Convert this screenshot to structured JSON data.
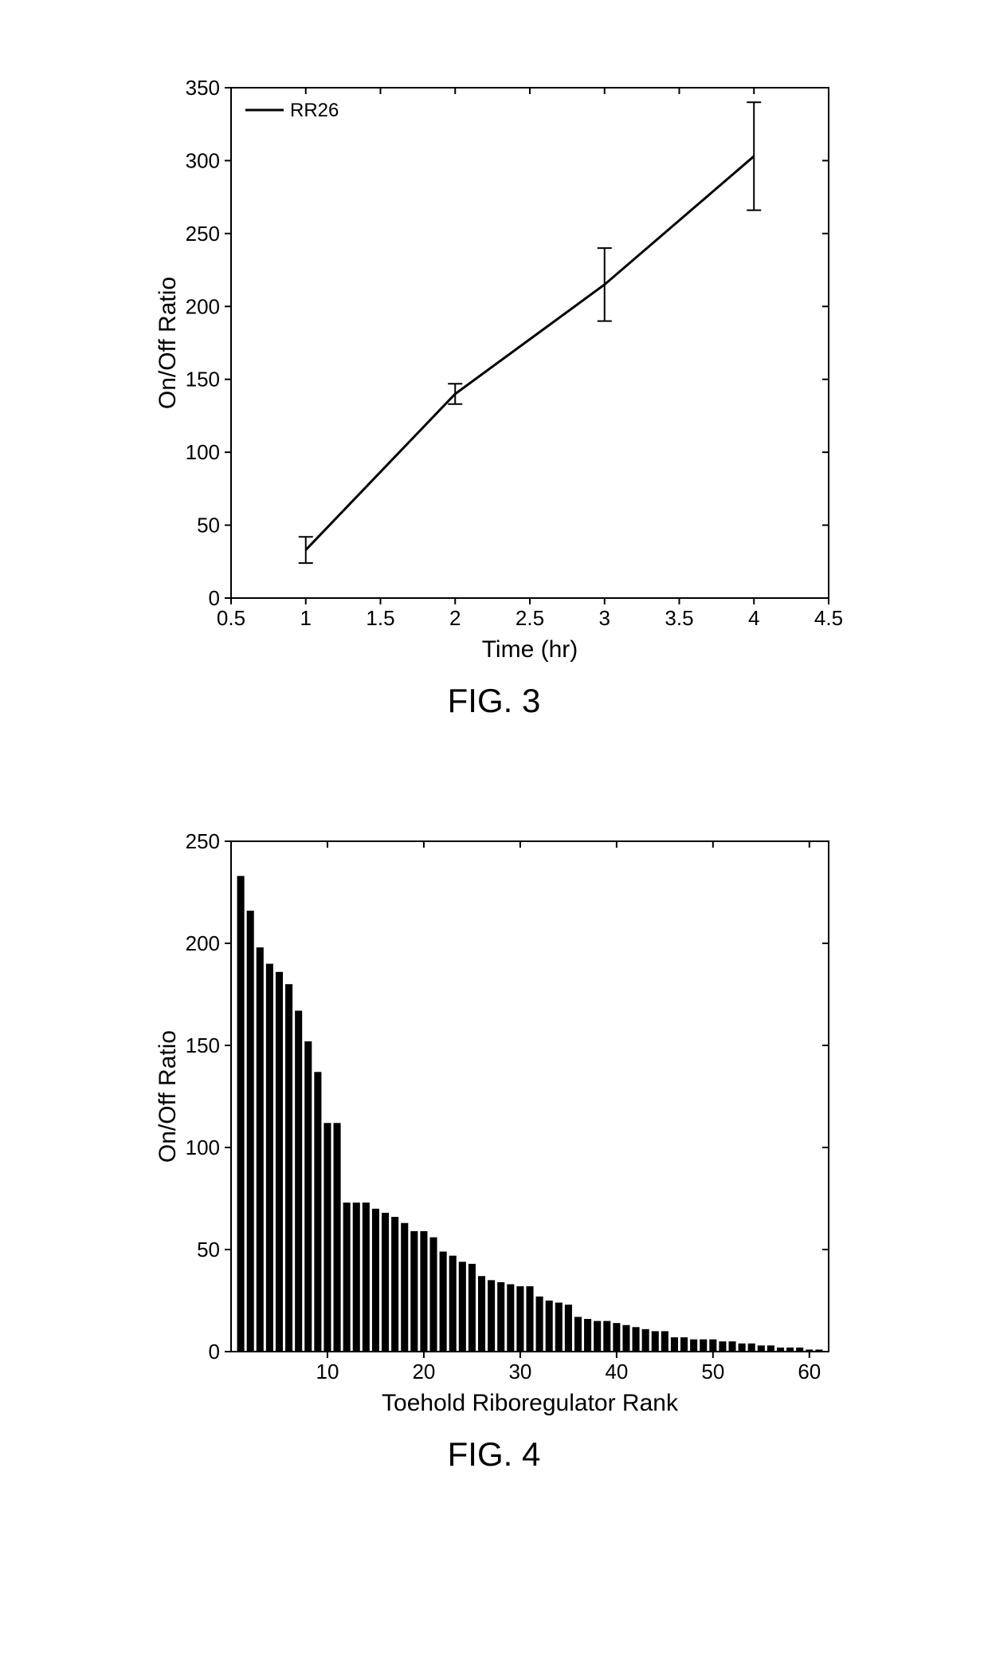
{
  "fig3": {
    "type": "line",
    "title": "FIG. 3",
    "legend_label": "RR26",
    "xlabel": "Time (hr)",
    "ylabel": "On/Off Ratio",
    "xlim": [
      0.5,
      4.5
    ],
    "ylim": [
      0,
      350
    ],
    "xticks": [
      0.5,
      1,
      1.5,
      2,
      2.5,
      3,
      3.5,
      4,
      4.5
    ],
    "yticks": [
      0,
      50,
      100,
      150,
      200,
      250,
      300,
      350
    ],
    "x": [
      1,
      2,
      3,
      4
    ],
    "y": [
      33,
      140,
      215,
      303
    ],
    "err_low": [
      9,
      7,
      25,
      37
    ],
    "err_high": [
      9,
      7,
      25,
      37
    ],
    "line_color": "#000000",
    "line_width": 3,
    "axis_color": "#000000",
    "background_color": "#ffffff",
    "label_fontsize": 30,
    "tick_fontsize": 26,
    "legend_fontsize": 24
  },
  "fig4": {
    "type": "bar",
    "title": "FIG. 4",
    "xlabel": "Toehold Riboregulator Rank",
    "ylabel": "On/Off Ratio",
    "xlim": [
      0,
      62
    ],
    "ylim": [
      0,
      250
    ],
    "xticks": [
      10,
      20,
      30,
      40,
      50,
      60
    ],
    "yticks": [
      0,
      50,
      100,
      150,
      200,
      250
    ],
    "x": [
      1,
      2,
      3,
      4,
      5,
      6,
      7,
      8,
      9,
      10,
      11,
      12,
      13,
      14,
      15,
      16,
      17,
      18,
      19,
      20,
      21,
      22,
      23,
      24,
      25,
      26,
      27,
      28,
      29,
      30,
      31,
      32,
      33,
      34,
      35,
      36,
      37,
      38,
      39,
      40,
      41,
      42,
      43,
      44,
      45,
      46,
      47,
      48,
      49,
      50,
      51,
      52,
      53,
      54,
      55,
      56,
      57,
      58,
      59,
      60,
      61
    ],
    "y": [
      233,
      216,
      198,
      190,
      186,
      180,
      167,
      152,
      137,
      112,
      112,
      73,
      73,
      73,
      70,
      68,
      66,
      63,
      59,
      59,
      56,
      49,
      47,
      44,
      43,
      37,
      35,
      34,
      33,
      32,
      32,
      27,
      25,
      24,
      23,
      17,
      16,
      15,
      15,
      14,
      13,
      12,
      11,
      10,
      10,
      7,
      7,
      6,
      6,
      6,
      5,
      5,
      4,
      4,
      3,
      3,
      2,
      2,
      2,
      1,
      1
    ],
    "bar_color": "#000000",
    "axis_color": "#000000",
    "background_color": "#ffffff",
    "label_fontsize": 30,
    "tick_fontsize": 26,
    "bar_width": 0.75
  }
}
